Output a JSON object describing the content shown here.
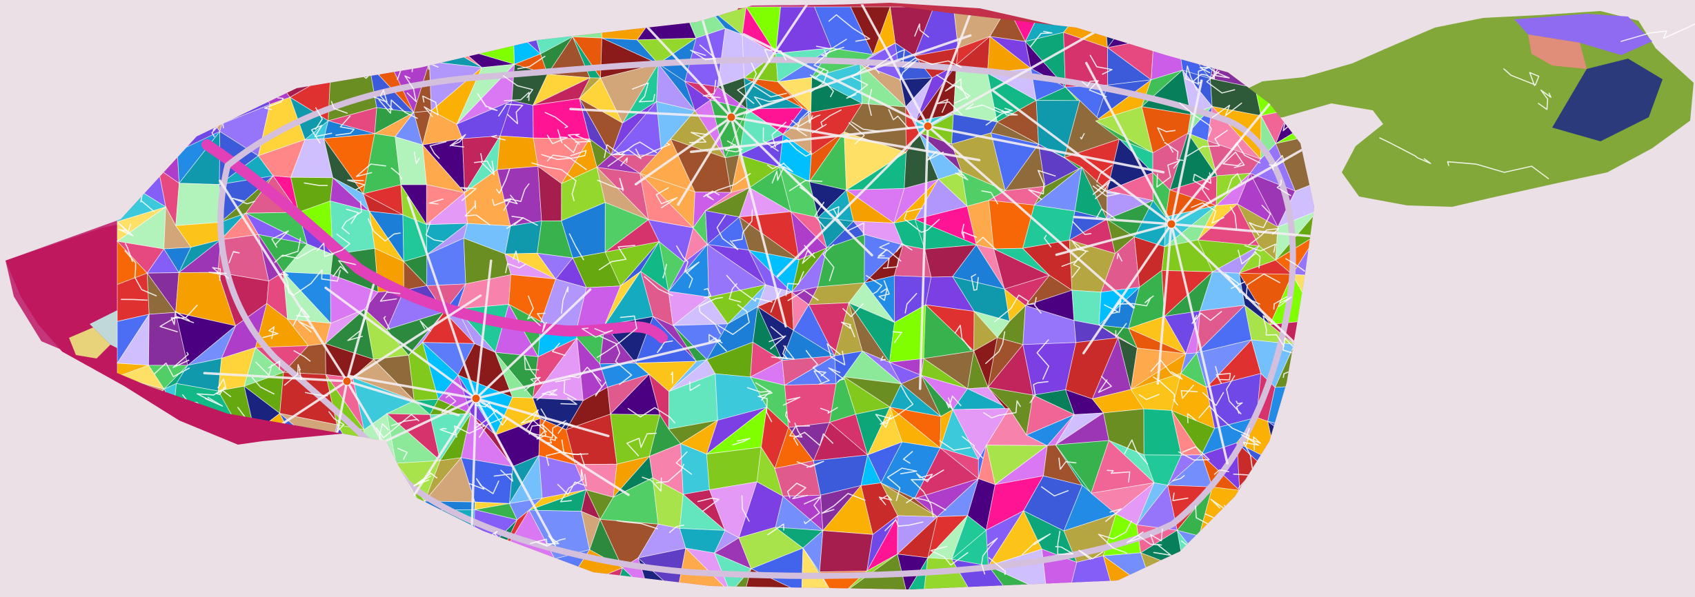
{
  "map": {
    "background_color": "#ebe0e6",
    "outline_color": "#c4357a",
    "east_park_color": "#82a83a",
    "road_color": "#ffffff",
    "river_color": "#e140b8",
    "ring_color": "#c0a8c8",
    "palette": [
      "#2f9e44",
      "#e05a8e",
      "#7b3fe4",
      "#f59f00",
      "#1c7ed6",
      "#37b24d",
      "#d6336c",
      "#9c36b5",
      "#0ca678",
      "#e8590c",
      "#5c7cfa",
      "#c2255c",
      "#82c91e",
      "#15aabf",
      "#f783ac",
      "#862e9c",
      "#40c057",
      "#fab005",
      "#4263eb",
      "#a61e4d",
      "#94d82d",
      "#1098ad",
      "#cc5de8",
      "#f76707",
      "#66a80f",
      "#ae3ec9",
      "#2b8a3e",
      "#e64980",
      "#3bc9db",
      "#845ef7",
      "#b197fc",
      "#ffa94d",
      "#8ce99a",
      "#a9e34b",
      "#da77f2",
      "#748ffc",
      "#63e6be",
      "#ff8787",
      "#5f3dc4",
      "#087f5b",
      "#e599f7",
      "#ffd43b",
      "#3b5bdb",
      "#c92a2a",
      "#20c997",
      "#9775fa",
      "#74c0fc",
      "#51cf66",
      "#f06595",
      "#228be6",
      "#fcc419",
      "#7048e8",
      "#12b886",
      "#e03131",
      "#4c6ef5",
      "#b2f2bb",
      "#d0bfff",
      "#ffe066",
      "#8f6a3a",
      "#a0522d",
      "#6b8e23",
      "#2e5a3a",
      "#8b1a1a",
      "#1a237e",
      "#b5a642",
      "#d2a679",
      "#4b0082",
      "#00bfff",
      "#ff1493",
      "#7fff00"
    ]
  }
}
